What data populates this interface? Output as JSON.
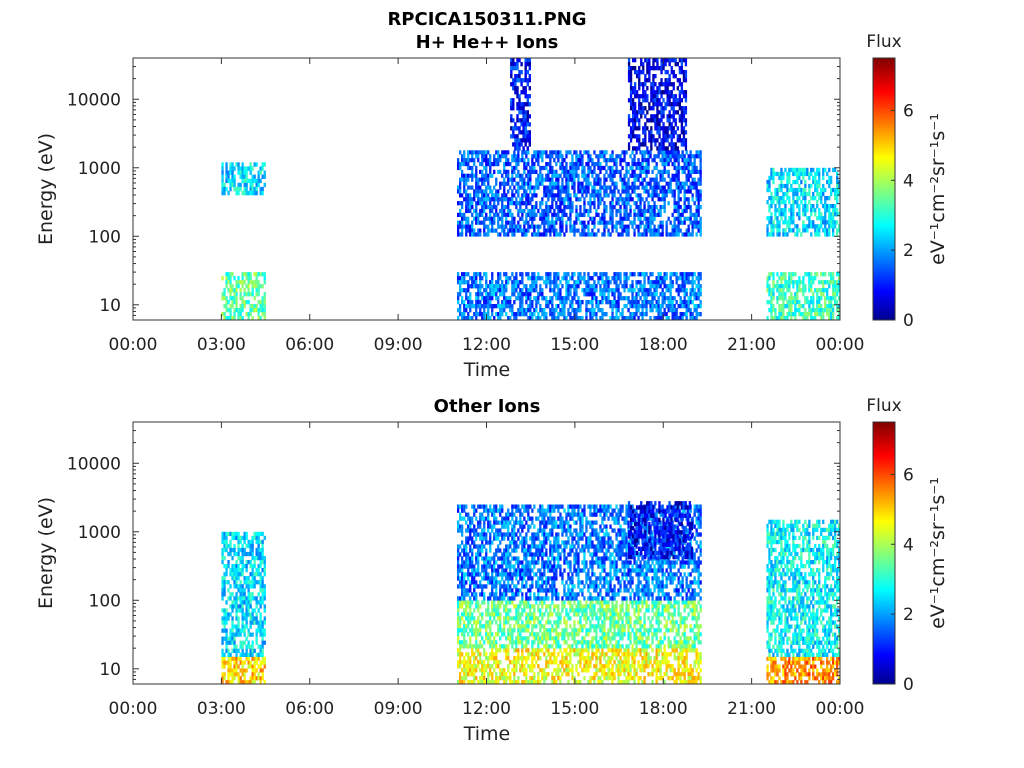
{
  "figure_title": "RPCICA150311.PNG",
  "colorbar": {
    "label": "Flux",
    "unit_label": "eV⁻¹cm⁻²sr⁻¹s⁻¹",
    "range": [
      0,
      7.5
    ],
    "ticks": [
      "0",
      "2",
      "4",
      "6"
    ],
    "colormap": "jet"
  },
  "chart_data": [
    {
      "type": "heatmap",
      "title": "H+ He++ Ions",
      "xlabel": "Time",
      "ylabel": "Energy (eV)",
      "x_ticks": [
        "00:00",
        "03:00",
        "06:00",
        "09:00",
        "12:00",
        "15:00",
        "18:00",
        "21:00",
        "00:00"
      ],
      "x_range_hours": [
        0,
        24
      ],
      "y_scale": "log",
      "y_range": [
        6,
        40000
      ],
      "y_ticks": [
        "10",
        "100",
        "1000",
        "10000"
      ],
      "blocks": [
        {
          "t0": 3.0,
          "t1": 4.5,
          "e0": 6,
          "e1": 30,
          "flux": 3.5
        },
        {
          "t0": 3.0,
          "t1": 4.5,
          "e0": 400,
          "e1": 1200,
          "flux": 2.6
        },
        {
          "t0": 11.0,
          "t1": 19.3,
          "e0": 6,
          "e1": 30,
          "flux": 1.8
        },
        {
          "t0": 11.0,
          "t1": 19.3,
          "e0": 100,
          "e1": 1800,
          "flux": 1.6
        },
        {
          "t0": 12.8,
          "t1": 13.5,
          "e0": 1800,
          "e1": 40000,
          "flux": 1.0
        },
        {
          "t0": 16.8,
          "t1": 18.8,
          "e0": 1800,
          "e1": 40000,
          "flux": 0.8
        },
        {
          "t0": 21.5,
          "t1": 24.0,
          "e0": 6,
          "e1": 30,
          "flux": 3.2
        },
        {
          "t0": 21.5,
          "t1": 24.0,
          "e0": 100,
          "e1": 1000,
          "flux": 2.6
        }
      ]
    },
    {
      "type": "heatmap",
      "title": "Other Ions",
      "xlabel": "Time",
      "ylabel": "Energy (eV)",
      "x_ticks": [
        "00:00",
        "03:00",
        "06:00",
        "09:00",
        "12:00",
        "15:00",
        "18:00",
        "21:00",
        "00:00"
      ],
      "x_range_hours": [
        0,
        24
      ],
      "y_scale": "log",
      "y_range": [
        6,
        40000
      ],
      "y_ticks": [
        "10",
        "100",
        "1000",
        "10000"
      ],
      "blocks": [
        {
          "t0": 3.0,
          "t1": 4.5,
          "e0": 6,
          "e1": 15,
          "flux": 5.0
        },
        {
          "t0": 3.0,
          "t1": 4.5,
          "e0": 15,
          "e1": 1000,
          "flux": 2.6
        },
        {
          "t0": 11.0,
          "t1": 19.3,
          "e0": 6,
          "e1": 20,
          "flux": 4.6
        },
        {
          "t0": 11.0,
          "t1": 19.3,
          "e0": 20,
          "e1": 100,
          "flux": 3.6
        },
        {
          "t0": 11.0,
          "t1": 19.3,
          "e0": 100,
          "e1": 2500,
          "flux": 1.8
        },
        {
          "t0": 16.8,
          "t1": 19.0,
          "e0": 400,
          "e1": 2800,
          "flux": 0.9
        },
        {
          "t0": 21.5,
          "t1": 24.0,
          "e0": 6,
          "e1": 15,
          "flux": 5.5
        },
        {
          "t0": 21.5,
          "t1": 24.0,
          "e0": 15,
          "e1": 1500,
          "flux": 2.8
        }
      ]
    }
  ]
}
